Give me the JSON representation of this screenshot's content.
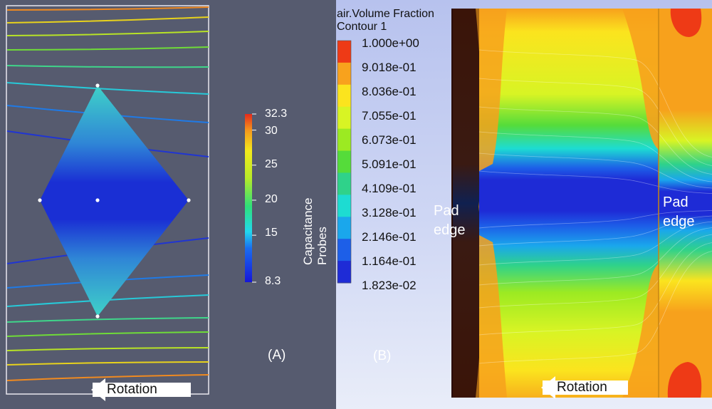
{
  "panel_a": {
    "label": "(A)",
    "colorbar": {
      "title": "Capacitance Probes",
      "min": 8.3,
      "max": 32.3,
      "ticks": [
        "32.3",
        "30",
        "25",
        "20",
        "15",
        "8.3"
      ],
      "tick_values": [
        32.3,
        30,
        25,
        20,
        15,
        8.3
      ]
    },
    "rotation_label": "Rotation"
  },
  "panel_b": {
    "label": "(B)",
    "legend": {
      "title_line1": "air.Volume Fraction",
      "title_line2": "Contour 1",
      "values": [
        "1.000e+00",
        "9.018e-01",
        "8.036e-01",
        "7.055e-01",
        "6.073e-01",
        "5.091e-01",
        "4.109e-01",
        "3.128e-01",
        "2.146e-01",
        "1.164e-01",
        "1.823e-02"
      ],
      "colors": [
        "#ee3a16",
        "#f8a21d",
        "#fbe41e",
        "#d8f424",
        "#9cea22",
        "#55dc3a",
        "#2fd28a",
        "#1ddcd2",
        "#1aa7ec",
        "#1d5fe8",
        "#1e2bd6"
      ]
    },
    "pad_left": [
      "Pad",
      "edge"
    ],
    "pad_right": [
      "Pad",
      "edge"
    ],
    "rotation_label": "Rotation"
  }
}
